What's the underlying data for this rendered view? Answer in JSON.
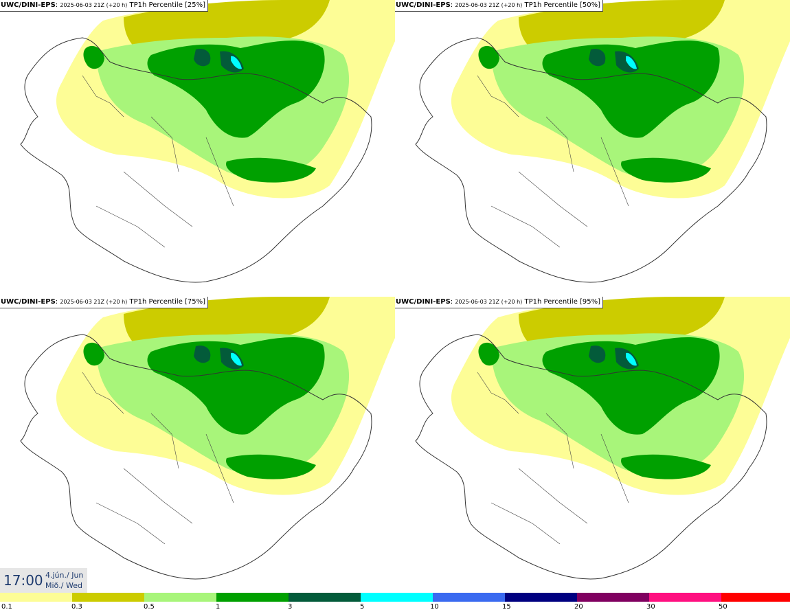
{
  "panels": [
    {
      "model": "UWC/DINI-EPS",
      "run": "2025-06-03 21Z (+20 h)",
      "field": "TP1h Percentile [25%]",
      "percentile": 25
    },
    {
      "model": "UWC/DINI-EPS",
      "run": "2025-06-03 21Z (+20 h)",
      "field": "TP1h Percentile [50%]",
      "percentile": 50
    },
    {
      "model": "UWC/DINI-EPS",
      "run": "2025-06-03 21Z (+20 h)",
      "field": "TP1h Percentile [75%]",
      "percentile": 75
    },
    {
      "model": "UWC/DINI-EPS",
      "run": "2025-06-03 21Z (+20 h)",
      "field": "TP1h Percentile [95%]",
      "percentile": 95
    }
  ],
  "valid_time": {
    "clock": "17:00",
    "date_line": "4.jún./ Jun",
    "day_line": "Mið./ Wed"
  },
  "legend": {
    "labels": [
      "0.1",
      "0.3",
      "0.5",
      "1",
      "3",
      "5",
      "10",
      "15",
      "20",
      "30",
      "50"
    ],
    "colors": [
      "#fdfd96",
      "#cccc00",
      "#a8f57a",
      "#00a000",
      "#035b3a",
      "#00ffff",
      "#3a6af0",
      "#000080",
      "#800060",
      "#ff1080",
      "#ff0000"
    ]
  }
}
